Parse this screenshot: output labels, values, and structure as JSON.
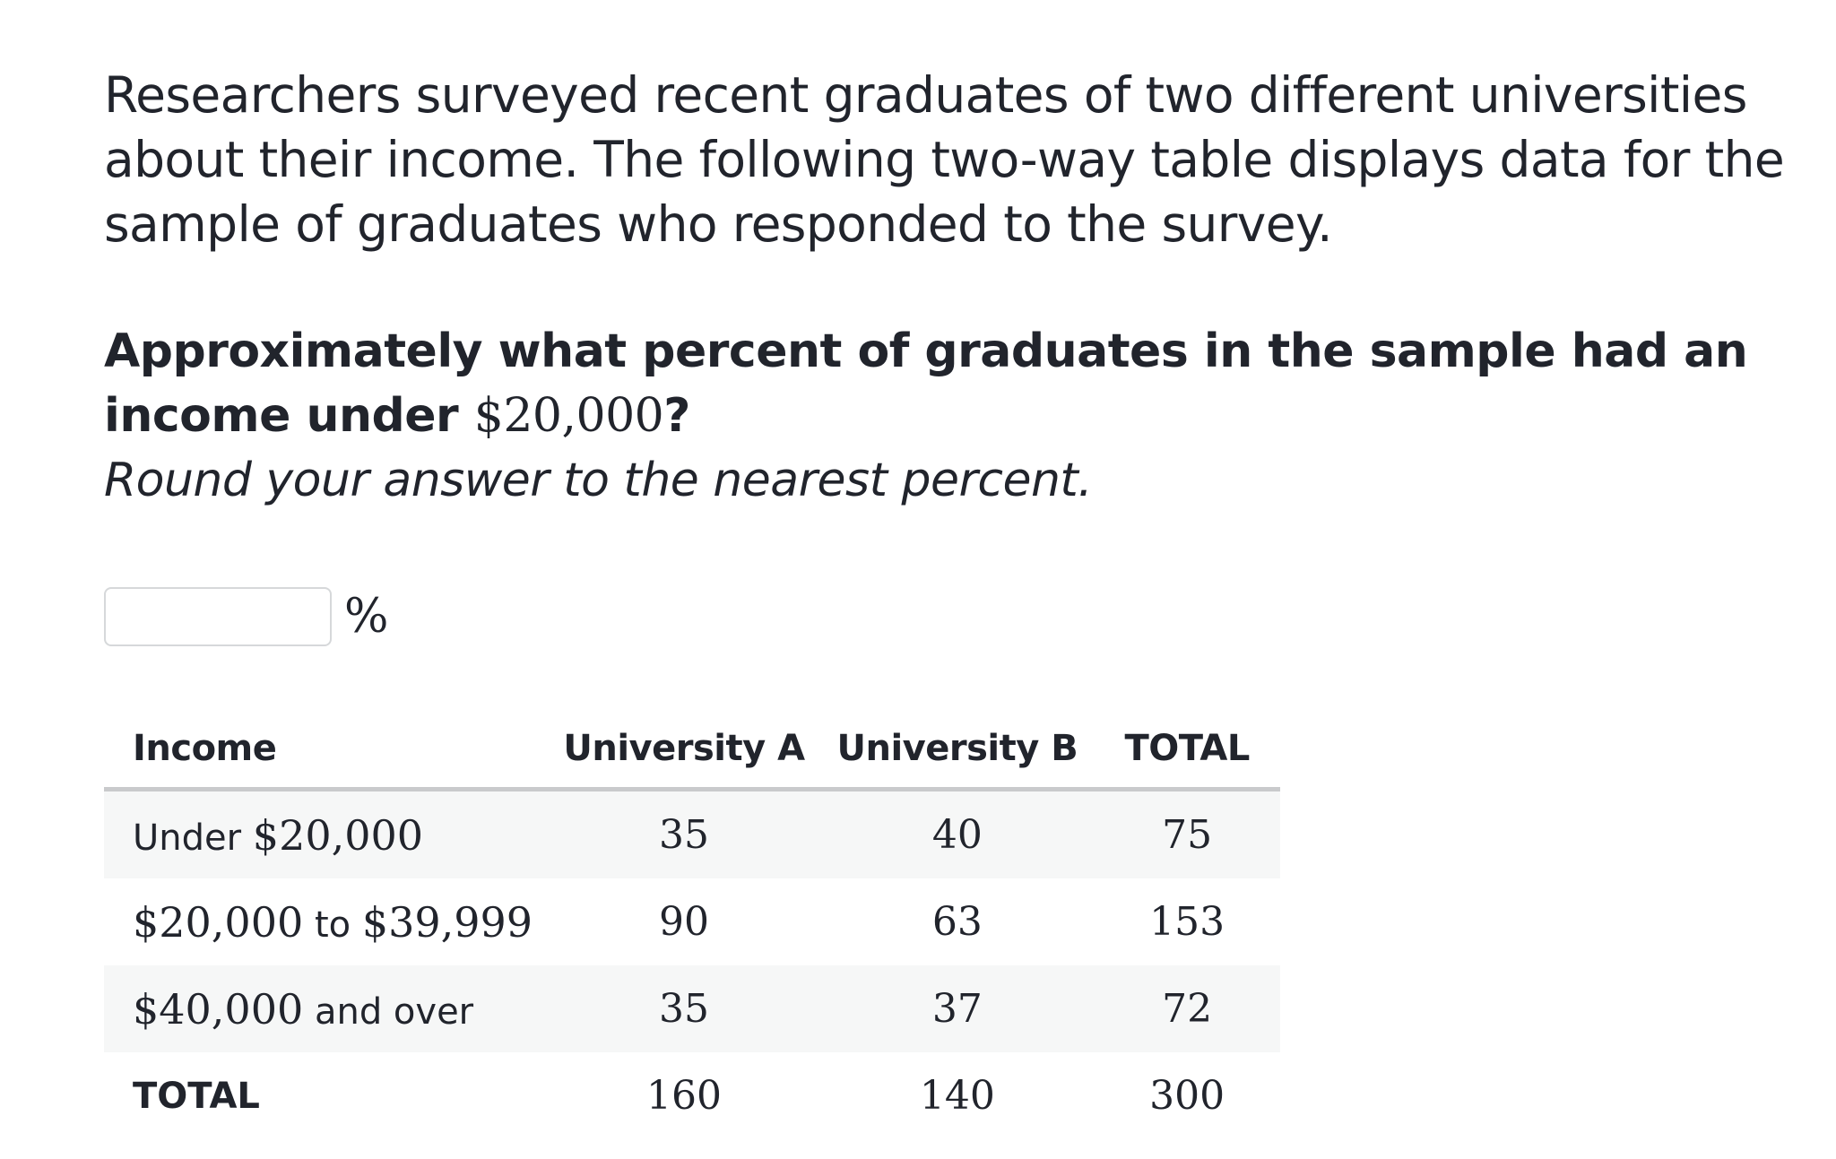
{
  "intro_text": "Researchers surveyed recent graduates of two different universities about their income. The following two-way table displays data for the sample of graduates who responded to the survey.",
  "question": {
    "text_before": "Approximately what percent of graduates in the sample had an income under ",
    "amount": "$20,000",
    "text_after": "?"
  },
  "instruction": "Round your answer to the nearest percent.",
  "answer": {
    "value": "",
    "unit": "%"
  },
  "table": {
    "headers": [
      "Income",
      "University A",
      "University B",
      "TOTAL"
    ],
    "rows": [
      {
        "label_pre": "Under ",
        "label_amount_1": "$20,000",
        "label_mid": "",
        "label_amount_2": "",
        "label_post": "",
        "values": [
          "35",
          "40",
          "75"
        ]
      },
      {
        "label_pre": "",
        "label_amount_1": "$20,000",
        "label_mid": " to ",
        "label_amount_2": "$39,999",
        "label_post": "",
        "values": [
          "90",
          "63",
          "153"
        ]
      },
      {
        "label_pre": "",
        "label_amount_1": "$40,000",
        "label_mid": "",
        "label_amount_2": "",
        "label_post": " and over",
        "values": [
          "35",
          "37",
          "72"
        ]
      }
    ],
    "total_row": {
      "label": "TOTAL",
      "values": [
        "160",
        "140",
        "300"
      ]
    }
  }
}
